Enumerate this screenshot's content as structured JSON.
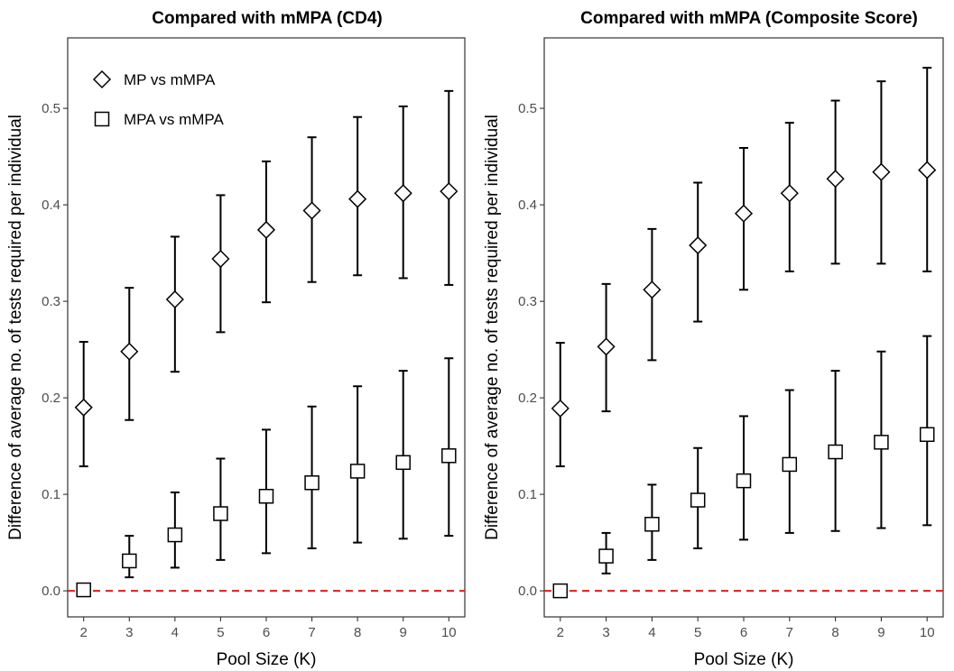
{
  "chart_data": [
    {
      "type": "scatter",
      "title": "Compared with mMPA (CD4)",
      "xlabel": "Pool Size (K)",
      "ylabel": "Difference of average no. of tests required per individual",
      "x": [
        2,
        3,
        4,
        5,
        6,
        7,
        8,
        9,
        10
      ],
      "xlim": [
        1.65,
        10.35
      ],
      "ylim": [
        -0.027,
        0.573
      ],
      "yticks": [
        "0.0",
        "0.1",
        "0.2",
        "0.3",
        "0.4",
        "0.5"
      ],
      "grid": false,
      "legend_position": "top-left",
      "reference_line": {
        "y": 0,
        "color": "#e41a1c",
        "style": "dashed"
      },
      "series": [
        {
          "name": "MP vs mMPA",
          "marker": "diamond",
          "y": [
            0.19,
            0.248,
            0.302,
            0.344,
            0.374,
            0.394,
            0.406,
            0.412,
            0.414
          ],
          "lower": [
            0.129,
            0.177,
            0.227,
            0.268,
            0.299,
            0.32,
            0.327,
            0.324,
            0.317
          ],
          "upper": [
            0.258,
            0.314,
            0.367,
            0.41,
            0.445,
            0.47,
            0.491,
            0.502,
            0.518
          ]
        },
        {
          "name": "MPA vs mMPA",
          "marker": "square",
          "y": [
            0.001,
            0.031,
            0.058,
            0.08,
            0.098,
            0.112,
            0.124,
            0.133,
            0.14
          ],
          "lower": [
            0.0,
            0.014,
            0.024,
            0.032,
            0.039,
            0.044,
            0.05,
            0.054,
            0.057
          ],
          "upper": [
            0.006,
            0.057,
            0.102,
            0.137,
            0.167,
            0.191,
            0.212,
            0.228,
            0.241
          ]
        }
      ]
    },
    {
      "type": "scatter",
      "title": "Compared with mMPA (Composite Score)",
      "xlabel": "Pool Size (K)",
      "ylabel": "Difference of average no. of tests required per individual",
      "x": [
        2,
        3,
        4,
        5,
        6,
        7,
        8,
        9,
        10
      ],
      "xlim": [
        1.65,
        10.35
      ],
      "ylim": [
        -0.027,
        0.573
      ],
      "yticks": [
        "0.0",
        "0.1",
        "0.2",
        "0.3",
        "0.4",
        "0.5"
      ],
      "grid": false,
      "reference_line": {
        "y": 0,
        "color": "#e41a1c",
        "style": "dashed"
      },
      "series": [
        {
          "marker": "diamond",
          "y": [
            0.189,
            0.253,
            0.312,
            0.358,
            0.391,
            0.412,
            0.427,
            0.434,
            0.436
          ],
          "lower": [
            0.129,
            0.186,
            0.239,
            0.279,
            0.312,
            0.331,
            0.339,
            0.339,
            0.331
          ],
          "upper": [
            0.257,
            0.318,
            0.375,
            0.423,
            0.459,
            0.485,
            0.508,
            0.528,
            0.542
          ]
        },
        {
          "marker": "square",
          "y": [
            0.0,
            0.036,
            0.069,
            0.094,
            0.114,
            0.131,
            0.144,
            0.154,
            0.162
          ],
          "lower": [
            0.0,
            0.018,
            0.032,
            0.044,
            0.053,
            0.06,
            0.062,
            0.065,
            0.068
          ],
          "upper": [
            0.004,
            0.06,
            0.11,
            0.148,
            0.181,
            0.208,
            0.228,
            0.248,
            0.264
          ]
        }
      ]
    }
  ]
}
